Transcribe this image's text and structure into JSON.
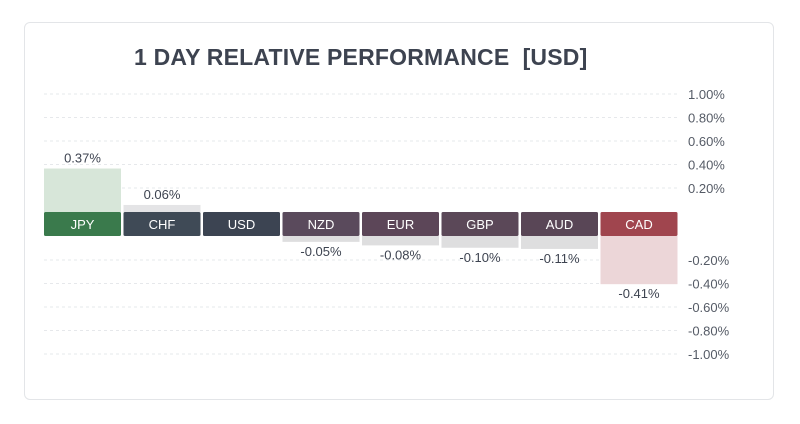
{
  "chart_data": {
    "type": "bar",
    "title": "1 DAY RELATIVE PERFORMANCE  [USD]",
    "categories": [
      "JPY",
      "CHF",
      "USD",
      "NZD",
      "EUR",
      "GBP",
      "AUD",
      "CAD"
    ],
    "values": [
      0.37,
      0.06,
      0,
      -0.05,
      -0.08,
      -0.1,
      -0.11,
      -0.41
    ],
    "data_labels": [
      "0.37%",
      "0.06%",
      "",
      "-0.05%",
      "-0.08%",
      "-0.10%",
      "-0.11%",
      "-0.41%"
    ],
    "pill_colors": [
      "#3a7a4c",
      "#3f4a56",
      "#3c4452",
      "#5a4a5c",
      "#5c4658",
      "#5b4858",
      "#594656",
      "#a0454e"
    ],
    "bar_colors": [
      "#d7e6d9",
      "#e4e4e6",
      "#e4e4e6",
      "#dededf",
      "#dededf",
      "#dededf",
      "#dededf",
      "#ecd6d8"
    ],
    "y_ticks_positive": [
      "1.00%",
      "0.80%",
      "0.60%",
      "0.40%",
      "0.20%"
    ],
    "y_ticks_negative": [
      "-0.20%",
      "-0.40%",
      "-0.60%",
      "-0.80%",
      "-1.00%"
    ],
    "ylim": [
      -1.0,
      1.0
    ],
    "grid": true,
    "xlabel": "",
    "ylabel": ""
  }
}
